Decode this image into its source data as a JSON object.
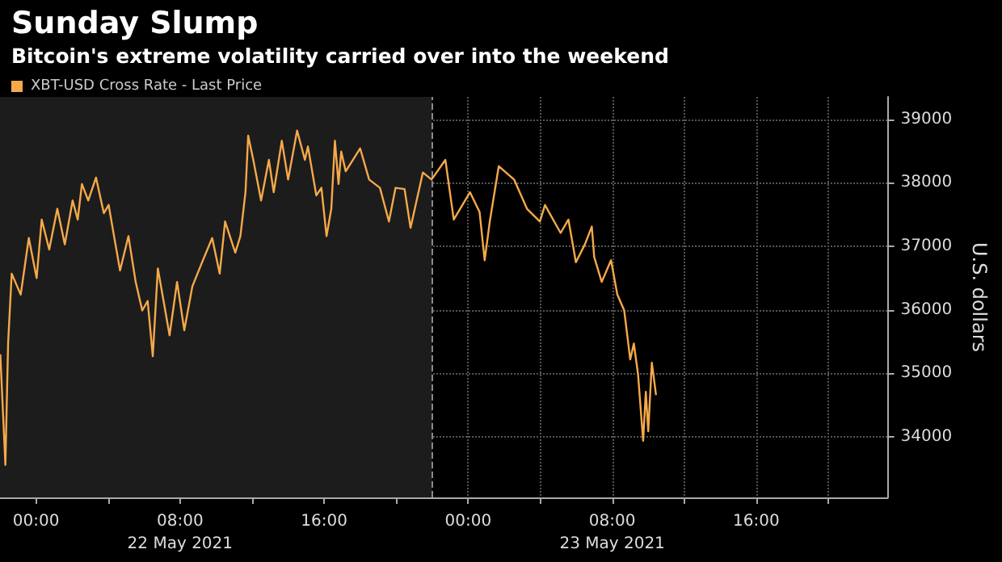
{
  "chart_data": {
    "type": "line",
    "title": "Sunday Slump",
    "subtitle": "Bitcoin's extreme volatility carried over into the weekend",
    "ylabel": "U.S. dollars",
    "x": [
      "2021-05-21T22:01",
      "2021-05-21T22:18",
      "2021-05-21T22:27",
      "2021-05-21T22:39",
      "2021-05-21T23:09",
      "2021-05-21T23:36",
      "2021-05-22T00:02",
      "2021-05-22T00:19",
      "2021-05-22T00:44",
      "2021-05-22T01:11",
      "2021-05-22T01:36",
      "2021-05-22T02:02",
      "2021-05-22T02:19",
      "2021-05-22T02:33",
      "2021-05-22T02:54",
      "2021-05-22T03:20",
      "2021-05-22T03:46",
      "2021-05-22T04:02",
      "2021-05-22T04:20",
      "2021-05-22T04:40",
      "2021-05-22T05:08",
      "2021-05-22T05:32",
      "2021-05-22T05:54",
      "2021-05-22T06:12",
      "2021-05-22T06:29",
      "2021-05-22T06:46",
      "2021-05-22T07:08",
      "2021-05-22T07:25",
      "2021-05-22T07:50",
      "2021-05-22T08:14",
      "2021-05-22T08:41",
      "2021-05-22T09:16",
      "2021-05-22T09:47",
      "2021-05-22T10:12",
      "2021-05-22T10:30",
      "2021-05-22T11:04",
      "2021-05-22T11:21",
      "2021-05-22T11:38",
      "2021-05-22T11:47",
      "2021-05-22T12:04",
      "2021-05-22T12:30",
      "2021-05-22T12:56",
      "2021-05-22T13:12",
      "2021-05-22T13:39",
      "2021-05-22T14:00",
      "2021-05-22T14:30",
      "2021-05-22T14:56",
      "2021-05-22T15:06",
      "2021-05-22T15:34",
      "2021-05-22T15:51",
      "2021-05-22T16:08",
      "2021-05-22T16:24",
      "2021-05-22T16:36",
      "2021-05-22T16:48",
      "2021-05-22T16:57",
      "2021-05-22T17:12",
      "2021-05-22T18:00",
      "2021-05-22T18:30",
      "2021-05-22T19:06",
      "2021-05-22T19:36",
      "2021-05-22T19:58",
      "2021-05-22T20:28",
      "2021-05-22T20:48",
      "2021-05-22T21:29",
      "2021-05-22T21:58",
      "2021-05-22T22:44",
      "2021-05-22T23:12",
      "2021-05-23T00:06",
      "2021-05-23T00:38",
      "2021-05-23T00:55",
      "2021-05-23T01:12",
      "2021-05-23T01:42",
      "2021-05-23T02:33",
      "2021-05-23T03:16",
      "2021-05-23T03:59",
      "2021-05-23T04:16",
      "2021-05-23T05:08",
      "2021-05-23T05:34",
      "2021-05-23T05:59",
      "2021-05-23T06:29",
      "2021-05-23T06:52",
      "2021-05-23T07:00",
      "2021-05-23T07:25",
      "2021-05-23T07:56",
      "2021-05-23T08:17",
      "2021-05-23T08:40",
      "2021-05-23T09:00",
      "2021-05-23T09:12",
      "2021-05-23T09:26",
      "2021-05-23T09:43",
      "2021-05-23T09:52",
      "2021-05-23T10:00",
      "2021-05-23T10:12",
      "2021-05-23T10:26"
    ],
    "series": [
      {
        "name": "XBT-USD Cross Rate - Last Price",
        "color": "#f5a94a",
        "values": [
          35300,
          33560,
          35470,
          36570,
          36240,
          37130,
          36500,
          37420,
          36950,
          37590,
          37030,
          37720,
          37420,
          37980,
          37720,
          38080,
          37520,
          37650,
          37160,
          36620,
          37160,
          36440,
          35990,
          36140,
          35270,
          36650,
          36060,
          35600,
          36440,
          35680,
          36370,
          36780,
          37130,
          36570,
          37390,
          36900,
          37160,
          37850,
          38740,
          38360,
          37720,
          38360,
          37850,
          38660,
          38050,
          38820,
          38360,
          38570,
          37800,
          37920,
          37160,
          37590,
          38660,
          37980,
          38490,
          38180,
          38540,
          38050,
          37920,
          37390,
          37920,
          37900,
          37290,
          38160,
          38050,
          38360,
          37420,
          37850,
          37540,
          36780,
          37390,
          38260,
          38050,
          37590,
          37390,
          37650,
          37210,
          37420,
          36750,
          37030,
          37310,
          36830,
          36440,
          36780,
          36240,
          35990,
          35220,
          35470,
          34990,
          33940,
          34710,
          34090,
          35170,
          34660
        ]
      }
    ],
    "xlim": [
      "2021-05-21T22:00",
      "2021-05-23T23:18"
    ],
    "xticks": [
      {
        "value": "2021-05-22T00:00",
        "label": "00:00"
      },
      {
        "value": "2021-05-22T04:00",
        "label": null
      },
      {
        "value": "2021-05-22T08:00",
        "label": "08:00\n22 May 2021"
      },
      {
        "value": "2021-05-22T12:00",
        "label": null
      },
      {
        "value": "2021-05-22T16:00",
        "label": "16:00"
      },
      {
        "value": "2021-05-22T20:00",
        "label": null
      },
      {
        "value": "2021-05-23T00:00",
        "label": "00:00"
      },
      {
        "value": "2021-05-23T04:00",
        "label": null
      },
      {
        "value": "2021-05-23T08:00",
        "label": "08:00\n23 May 2021"
      },
      {
        "value": "2021-05-23T12:00",
        "label": null
      },
      {
        "value": "2021-05-23T16:00",
        "label": "16:00"
      },
      {
        "value": "2021-05-23T20:00",
        "label": null
      }
    ],
    "ylim": [
      33050,
      39350
    ],
    "yticks": [
      34000,
      35000,
      36000,
      37000,
      38000,
      39000
    ],
    "bands": [
      {
        "axis": "x",
        "from": "2021-05-21T22:00",
        "to": "2021-05-22T22:00",
        "color": "#1c1c1c"
      }
    ],
    "ref_lines": [
      {
        "axis": "x",
        "value": "2021-05-22T22:00",
        "line_style": "dashed",
        "color": "#8a8a8a"
      }
    ],
    "grid": true,
    "legend": "top left",
    "marker": "none",
    "line_style": "solid"
  }
}
